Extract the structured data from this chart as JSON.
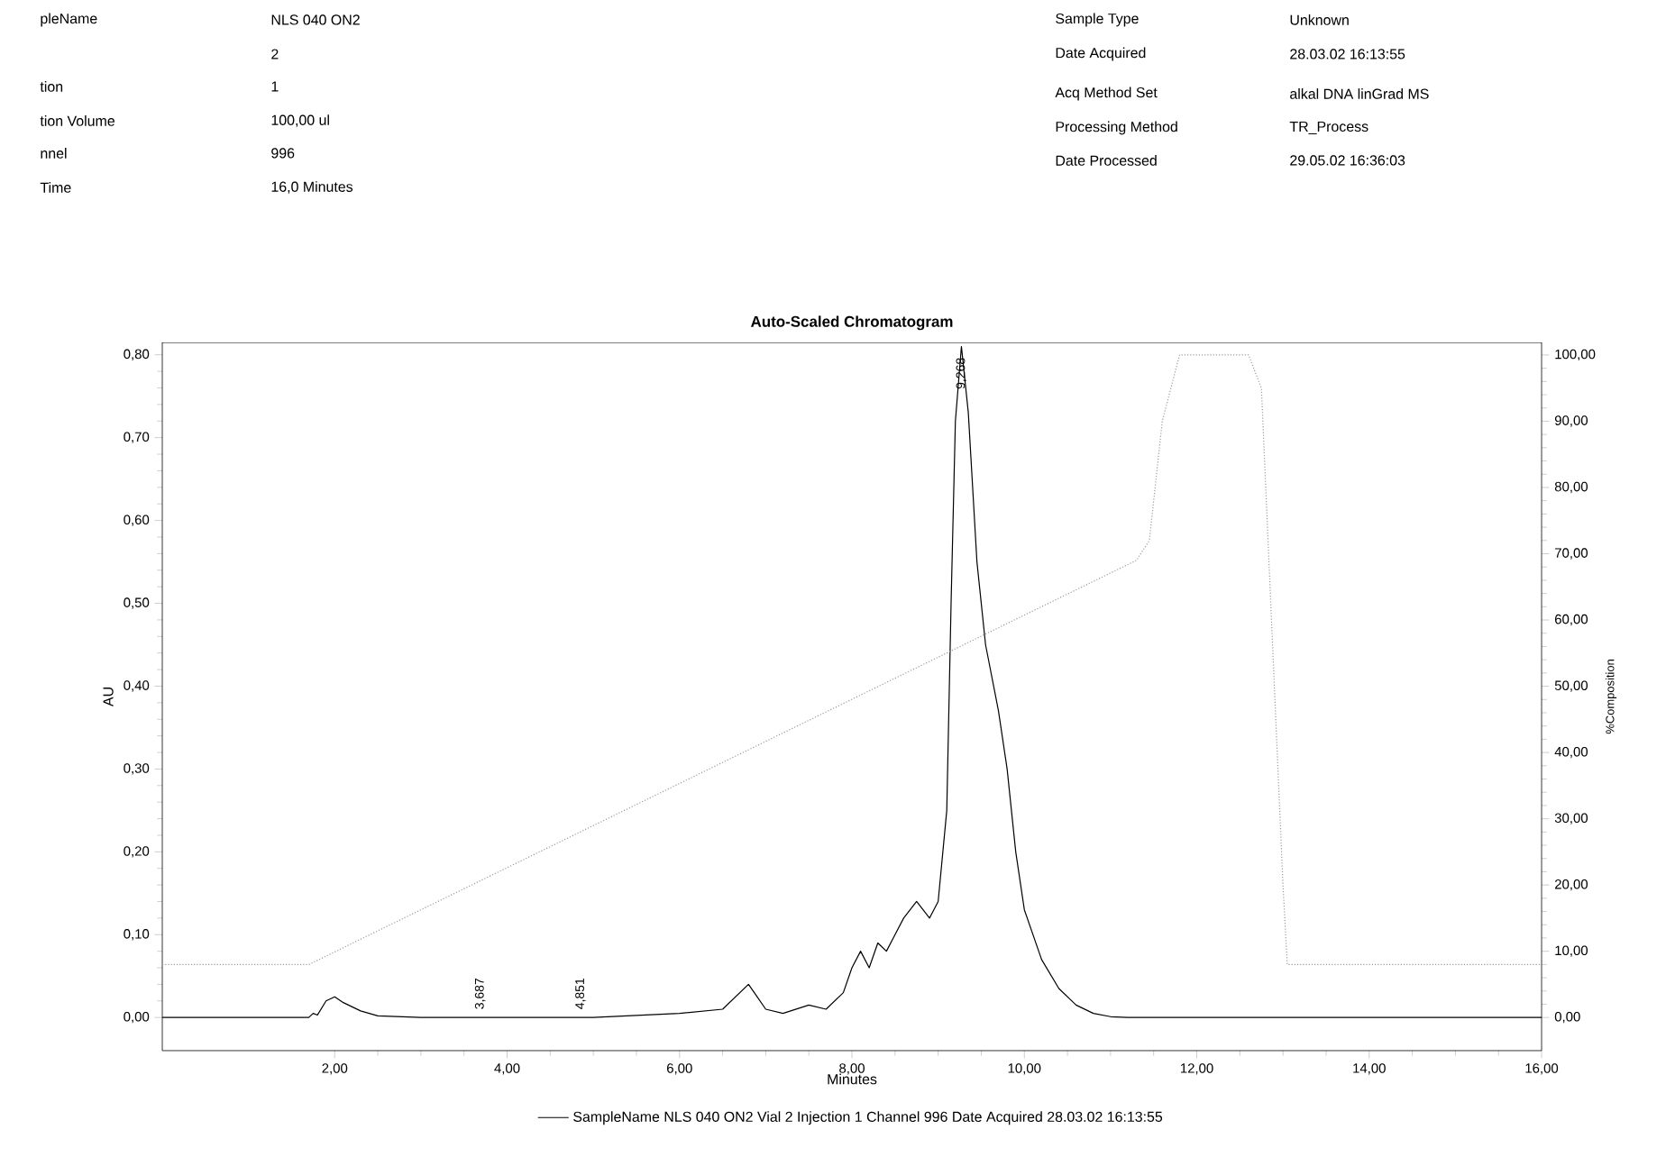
{
  "chart_data": {
    "type": "line",
    "title": "Auto-Scaled Chromatogram",
    "xlabel": "Minutes",
    "ylabel": "AU",
    "y2label": "%Composition",
    "xlim": [
      0,
      16
    ],
    "xticks": [
      {
        "value": 2,
        "label": "2,00"
      },
      {
        "value": 4,
        "label": "4,00"
      },
      {
        "value": 6,
        "label": "6,00"
      },
      {
        "value": 8,
        "label": "8,00"
      },
      {
        "value": 10,
        "label": "10,00"
      },
      {
        "value": 12,
        "label": "12,00"
      },
      {
        "value": 14,
        "label": "14,00"
      },
      {
        "value": 16,
        "label": "16,00"
      }
    ],
    "ylim": [
      -0.04,
      0.815
    ],
    "yticks": [
      {
        "value": 0,
        "label": "0,00"
      },
      {
        "value": 0.1,
        "label": "0,10"
      },
      {
        "value": 0.2,
        "label": "0,20"
      },
      {
        "value": 0.3,
        "label": "0,30"
      },
      {
        "value": 0.4,
        "label": "0,40"
      },
      {
        "value": 0.5,
        "label": "0,50"
      },
      {
        "value": 0.6,
        "label": "0,60"
      },
      {
        "value": 0.7,
        "label": "0,70"
      },
      {
        "value": 0.8,
        "label": "0,80"
      }
    ],
    "y2lim": [
      -5,
      101.9
    ],
    "y2ticks": [
      {
        "value": 0,
        "label": "0,00"
      },
      {
        "value": 10,
        "label": "10,00"
      },
      {
        "value": 20,
        "label": "20,00"
      },
      {
        "value": 30,
        "label": "30,00"
      },
      {
        "value": 40,
        "label": "40,00"
      },
      {
        "value": 50,
        "label": "50,00"
      },
      {
        "value": 60,
        "label": "60,00"
      },
      {
        "value": 70,
        "label": "70,00"
      },
      {
        "value": 80,
        "label": "80,00"
      },
      {
        "value": 90,
        "label": "90,00"
      },
      {
        "value": 100,
        "label": "100,00"
      }
    ],
    "legend": "bottom",
    "grid": false,
    "marker": "none",
    "series": [
      {
        "name": "SampleName NLS 040 ON2 Vial 2 Injection 1 Channel 996 Date Acquired 28.03.02 16:13:55",
        "color": "#000000",
        "line_style": "solid",
        "x": [
          0,
          1.7,
          1.75,
          1.8,
          1.9,
          2.0,
          2.1,
          2.3,
          2.5,
          3.0,
          5.0,
          6.0,
          6.5,
          6.7,
          6.8,
          6.9,
          7.0,
          7.2,
          7.5,
          7.7,
          7.9,
          8.0,
          8.1,
          8.2,
          8.3,
          8.4,
          8.5,
          8.6,
          8.75,
          8.9,
          9.0,
          9.1,
          9.15,
          9.2,
          9.27,
          9.35,
          9.45,
          9.55,
          9.7,
          9.8,
          9.9,
          10.0,
          10.2,
          10.4,
          10.6,
          10.8,
          11.0,
          11.2,
          16
        ],
        "values": [
          0,
          0,
          0.005,
          0.003,
          0.02,
          0.025,
          0.018,
          0.008,
          0.002,
          0,
          0,
          0.005,
          0.01,
          0.03,
          0.04,
          0.025,
          0.01,
          0.005,
          0.015,
          0.01,
          0.03,
          0.06,
          0.08,
          0.06,
          0.09,
          0.08,
          0.1,
          0.12,
          0.14,
          0.12,
          0.14,
          0.25,
          0.5,
          0.72,
          0.81,
          0.73,
          0.55,
          0.45,
          0.37,
          0.3,
          0.2,
          0.13,
          0.07,
          0.035,
          0.015,
          0.005,
          0.001,
          0,
          0
        ]
      },
      {
        "color": "#9a9a9a",
        "axis": "y2",
        "line_style": "dotted",
        "x": [
          0,
          1.7,
          11.3,
          11.45,
          11.6,
          11.8,
          12.6,
          12.75,
          13.0,
          13.05,
          16
        ],
        "values": [
          8,
          8,
          69,
          72,
          90,
          100,
          100,
          95,
          20,
          8,
          8
        ]
      }
    ],
    "annotations": [
      "pleName",
      "NLS 040 ON2",
      "2",
      "tion",
      "1",
      "tion Volume",
      "100,00 ul",
      "nnel",
      "996",
      "Time",
      "16,0 Minutes",
      "Sample Type",
      "Unknown",
      "Date Acquired",
      "28.03.02 16:13:55",
      "Acq Method Set",
      "alkal DNA linGrad MS",
      "Processing Method",
      "TR_Process",
      "Date Processed",
      "29.05.02 16:36:03",
      {
        "text": "3,687",
        "x": 3.687,
        "y": 0.005
      },
      {
        "text": "4,851",
        "x": 4.851,
        "y": 0.005
      },
      {
        "text": "9,268",
        "x": 9.268,
        "y": 0.81
      }
    ]
  }
}
